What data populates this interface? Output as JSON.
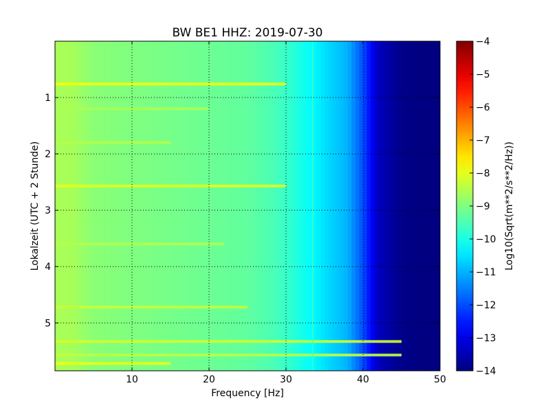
{
  "chart_data": {
    "type": "heatmap",
    "title": "BW BE1 HHZ: 2019-07-30",
    "xlabel": "Frequency [Hz]",
    "ylabel": "Lokalzeit (UTC + 2 Stunde)",
    "xlim": [
      0,
      50
    ],
    "ylim": [
      5.85,
      0
    ],
    "xticks": [
      10,
      20,
      30,
      40,
      50
    ],
    "yticks": [
      1,
      2,
      3,
      4,
      5
    ],
    "grid": true,
    "colormap": "jet",
    "colorbar": {
      "label": "Log10(Sqrt(m**2/s**2/Hz))",
      "range": [
        -14,
        -4
      ],
      "ticks": [
        -4,
        -5,
        -6,
        -7,
        -8,
        -9,
        -10,
        -11,
        -12,
        -13,
        -14
      ]
    },
    "frequency_profile_hz": [
      0,
      2,
      5,
      10,
      15,
      20,
      25,
      28,
      30,
      33,
      36,
      38,
      40,
      42,
      45,
      48,
      50
    ],
    "frequency_profile_log10": [
      -8.6,
      -8.6,
      -8.9,
      -9.0,
      -9.1,
      -9.2,
      -9.3,
      -9.5,
      -9.7,
      -10.2,
      -10.7,
      -11.0,
      -12.0,
      -13.4,
      -13.9,
      -14.0,
      -14.0
    ],
    "bright_bands": [
      {
        "time": 0.76,
        "freq_max": 30,
        "level": -7.8
      },
      {
        "time": 1.2,
        "freq_max": 20,
        "level": -8.6
      },
      {
        "time": 1.8,
        "freq_max": 15,
        "level": -8.5
      },
      {
        "time": 2.57,
        "freq_max": 30,
        "level": -8.0
      },
      {
        "time": 3.6,
        "freq_max": 22,
        "level": -8.5
      },
      {
        "time": 4.72,
        "freq_max": 25,
        "level": -8.3
      },
      {
        "time": 5.33,
        "freq_max": 45,
        "level": -8.2
      },
      {
        "time": 5.57,
        "freq_max": 45,
        "level": -8.4
      },
      {
        "time": 5.72,
        "freq_max": 15,
        "level": -7.9
      }
    ],
    "vertical_line_hz": 33.5
  }
}
